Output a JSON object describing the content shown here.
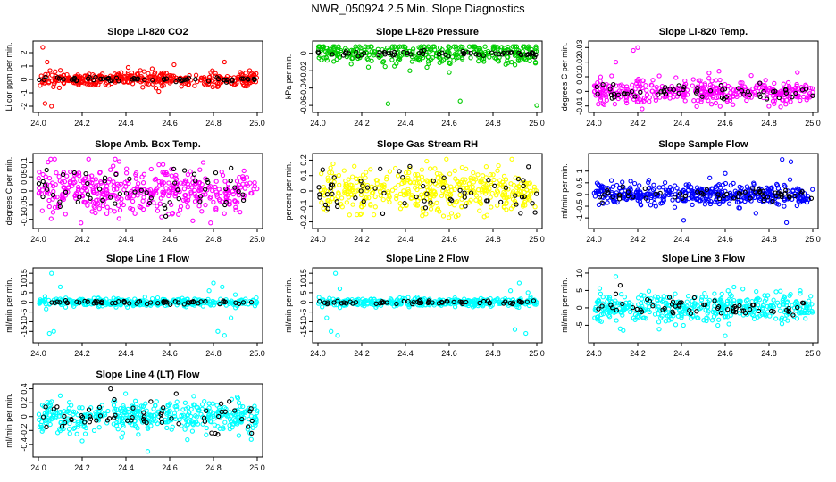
{
  "title": "NWR_050924  2.5 Min. Slope Diagnostics",
  "colors": {
    "highlight": "#000000",
    "red": "#ff0000",
    "green": "#00cc00",
    "magenta": "#ff00ff",
    "yellow": "#ffff00",
    "blue": "#0000ff",
    "cyan": "#00ffff"
  },
  "chart_data": [
    {
      "type": "scatter",
      "title": "Slope Li-820 CO2",
      "ylabel": "Li cor ppm per min.",
      "xlim": [
        24.0,
        25.0
      ],
      "ylim": [
        -2.2,
        2.6
      ],
      "xticks": [
        "24.0",
        "24.2",
        "24.4",
        "24.6",
        "24.8",
        "25.0"
      ],
      "yticks": [
        -2,
        -1,
        0,
        1,
        2
      ],
      "series": [
        {
          "color": "red",
          "center": 0.0,
          "spread": 0.25,
          "count": 380,
          "outliers": [
            [
              24.02,
              2.4
            ],
            [
              24.03,
              -1.8
            ],
            [
              24.06,
              -2.0
            ],
            [
              24.04,
              1.3
            ],
            [
              24.85,
              1.3
            ],
            [
              24.62,
              1.1
            ],
            [
              24.41,
              0.9
            ],
            [
              24.55,
              -0.9
            ],
            [
              24.52,
              0.8
            ],
            [
              24.95,
              -0.5
            ]
          ]
        },
        {
          "color": "highlight",
          "center": 0.0,
          "spread": 0.1,
          "count": 60,
          "outliers": []
        }
      ]
    },
    {
      "type": "scatter",
      "title": "Slope Li-820 Pressure",
      "ylabel": "kPa per min.",
      "xlim": [
        24.0,
        25.0
      ],
      "ylim": [
        -0.064,
        0.01
      ],
      "xticks": [
        "24.0",
        "24.2",
        "24.4",
        "24.6",
        "24.8",
        "25.0"
      ],
      "yticks": [
        -0.06,
        -0.04,
        -0.02,
        0
      ],
      "series": [
        {
          "color": "green",
          "center": 0.0,
          "spread": 0.006,
          "count": 330,
          "outliers": [
            [
              24.32,
              -0.058
            ],
            [
              24.65,
              -0.055
            ],
            [
              25.0,
              -0.06
            ],
            [
              24.42,
              -0.02
            ],
            [
              24.6,
              -0.022
            ]
          ]
        },
        {
          "color": "highlight",
          "center": 0.0,
          "spread": 0.0015,
          "count": 60,
          "outliers": []
        }
      ]
    },
    {
      "type": "scatter",
      "title": "Slope Li-820 Temp.",
      "ylabel": "degrees C per min.",
      "xlim": [
        24.0,
        25.0
      ],
      "ylim": [
        -0.012,
        0.032
      ],
      "xticks": [
        "24.0",
        "24.2",
        "24.4",
        "24.6",
        "24.8",
        "25.0"
      ],
      "yticks": [
        -0.01,
        0.0,
        0.01,
        0.02,
        0.03
      ],
      "series": [
        {
          "color": "magenta",
          "center": 0.0,
          "spread": 0.004,
          "count": 380,
          "outliers": [
            [
              24.2,
              0.03
            ],
            [
              24.18,
              0.028
            ],
            [
              24.22,
              -0.012
            ],
            [
              24.1,
              0.02
            ],
            [
              24.15,
              -0.008
            ],
            [
              24.93,
              0.013
            ],
            [
              24.88,
              -0.006
            ]
          ]
        },
        {
          "color": "highlight",
          "center": 0.0,
          "spread": 0.003,
          "count": 60,
          "outliers": []
        }
      ]
    },
    {
      "type": "scatter",
      "title": "Slope Amb. Box Temp.",
      "ylabel": "degrees C per min.",
      "xlim": [
        24.0,
        25.0
      ],
      "ylim": [
        -0.12,
        0.12
      ],
      "xticks": [
        "24.0",
        "24.2",
        "24.4",
        "24.6",
        "24.8",
        "25.0"
      ],
      "yticks": [
        -0.1,
        -0.05,
        0.0,
        0.05,
        0.1
      ],
      "series": [
        {
          "color": "magenta",
          "center": 0.0,
          "spread": 0.045,
          "count": 420,
          "outliers": []
        },
        {
          "color": "highlight",
          "center": 0.0,
          "spread": 0.04,
          "count": 60,
          "outliers": []
        }
      ]
    },
    {
      "type": "scatter",
      "title": "Slope Gas Stream RH",
      "ylabel": "percent per min.",
      "xlim": [
        24.0,
        25.0
      ],
      "ylim": [
        -0.22,
        0.22
      ],
      "xticks": [
        "24.0",
        "24.2",
        "24.4",
        "24.6",
        "24.8",
        "25.0"
      ],
      "yticks": [
        -0.2,
        -0.1,
        0.0,
        0.1,
        0.2
      ],
      "series": [
        {
          "color": "yellow",
          "center": 0.0,
          "spread": 0.07,
          "count": 420,
          "outliers": []
        },
        {
          "color": "highlight",
          "center": 0.0,
          "spread": 0.06,
          "count": 60,
          "outliers": [
            [
              24.42,
              0.16
            ],
            [
              24.98,
              -0.08
            ]
          ]
        }
      ]
    },
    {
      "type": "scatter",
      "title": "Slope Sample Flow",
      "ylabel": "ml/min per min.",
      "xlim": [
        24.0,
        25.0
      ],
      "ylim": [
        -1.3,
        1.6
      ],
      "xticks": [
        "24.0",
        "24.2",
        "24.4",
        "24.6",
        "24.8",
        "25.0"
      ],
      "yticks": [
        -1.0,
        -0.5,
        0.0,
        0.5,
        1.0
      ],
      "series": [
        {
          "color": "blue",
          "center": 0.0,
          "spread": 0.22,
          "count": 420,
          "outliers": [
            [
              24.41,
              -1.1
            ],
            [
              24.88,
              -1.2
            ],
            [
              24.86,
              1.5
            ],
            [
              24.9,
              1.4
            ],
            [
              24.08,
              0.6
            ],
            [
              24.6,
              0.9
            ],
            [
              24.74,
              -0.8
            ]
          ]
        },
        {
          "color": "highlight",
          "center": 0.0,
          "spread": 0.15,
          "count": 60,
          "outliers": []
        }
      ]
    },
    {
      "type": "scatter",
      "title": "Slope Line 1 Flow",
      "ylabel": "ml/min per min.",
      "xlim": [
        24.0,
        25.0
      ],
      "ylim": [
        -19,
        16
      ],
      "xticks": [
        "24.0",
        "24.2",
        "24.4",
        "24.6",
        "24.8",
        "25.0"
      ],
      "yticks": [
        -15,
        -10,
        -5,
        0,
        5,
        10,
        15
      ],
      "series": [
        {
          "color": "cyan",
          "center": 0.0,
          "spread": 1.0,
          "count": 360,
          "outliers": [
            [
              24.06,
              15
            ],
            [
              24.07,
              -15
            ],
            [
              24.05,
              -16
            ],
            [
              24.1,
              8
            ],
            [
              24.03,
              3
            ],
            [
              24.8,
              10
            ],
            [
              24.85,
              -17
            ],
            [
              24.82,
              -15
            ],
            [
              24.78,
              6
            ],
            [
              24.88,
              -8
            ],
            [
              24.84,
              8
            ],
            [
              24.9,
              4
            ]
          ]
        },
        {
          "color": "highlight",
          "center": 0.0,
          "spread": 0.5,
          "count": 60,
          "outliers": []
        }
      ]
    },
    {
      "type": "scatter",
      "title": "Slope Line 2 Flow",
      "ylabel": "ml/min per min.",
      "xlim": [
        24.0,
        25.0
      ],
      "ylim": [
        -19,
        16
      ],
      "xticks": [
        "24.0",
        "24.2",
        "24.4",
        "24.6",
        "24.8",
        "25.0"
      ],
      "yticks": [
        -15,
        -10,
        -5,
        0,
        5,
        10,
        15
      ],
      "series": [
        {
          "color": "cyan",
          "center": 0.0,
          "spread": 1.0,
          "count": 360,
          "outliers": [
            [
              24.08,
              15
            ],
            [
              24.06,
              -15
            ],
            [
              24.09,
              -17
            ],
            [
              24.1,
              7
            ],
            [
              24.04,
              -8
            ],
            [
              24.92,
              10
            ],
            [
              24.95,
              -16
            ],
            [
              24.9,
              -14
            ],
            [
              24.88,
              6
            ],
            [
              24.96,
              5
            ]
          ]
        },
        {
          "color": "highlight",
          "center": 0.0,
          "spread": 0.5,
          "count": 60,
          "outliers": []
        }
      ]
    },
    {
      "type": "scatter",
      "title": "Slope Line 3 Flow",
      "ylabel": "ml/min per min.",
      "xlim": [
        24.0,
        25.0
      ],
      "ylim": [
        -9,
        10.5
      ],
      "xticks": [
        "24.0",
        "24.2",
        "24.4",
        "24.6",
        "24.8",
        "25.0"
      ],
      "yticks": [
        -5,
        0,
        5,
        10
      ],
      "series": [
        {
          "color": "cyan",
          "center": 0.0,
          "spread": 2.0,
          "count": 420,
          "outliers": [
            [
              24.1,
              9
            ],
            [
              24.12,
              -6
            ],
            [
              24.6,
              -8
            ],
            [
              24.64,
              6
            ],
            [
              24.03,
              4
            ]
          ]
        },
        {
          "color": "highlight",
          "center": 0.0,
          "spread": 1.3,
          "count": 60,
          "outliers": [
            [
              24.12,
              6.5
            ],
            [
              24.1,
              4
            ]
          ]
        }
      ]
    },
    {
      "type": "scatter",
      "title": "Slope Line 4 (LT) Flow",
      "ylabel": "ml/min per min.",
      "xlim": [
        24.0,
        25.0
      ],
      "ylim": [
        -0.53,
        0.42
      ],
      "xticks": [
        "24.0",
        "24.2",
        "24.4",
        "24.6",
        "24.8",
        "25.0"
      ],
      "yticks": [
        -0.4,
        -0.2,
        0.0,
        0.2,
        0.4
      ],
      "series": [
        {
          "color": "cyan",
          "center": 0.0,
          "spread": 0.11,
          "count": 420,
          "outliers": [
            [
              24.5,
              -0.5
            ],
            [
              24.1,
              0.3
            ],
            [
              24.38,
              -0.3
            ],
            [
              24.2,
              -0.35
            ]
          ]
        },
        {
          "color": "highlight",
          "center": 0.0,
          "spread": 0.12,
          "count": 60,
          "outliers": [
            [
              24.33,
              0.4
            ],
            [
              24.63,
              0.33
            ]
          ]
        }
      ]
    }
  ]
}
